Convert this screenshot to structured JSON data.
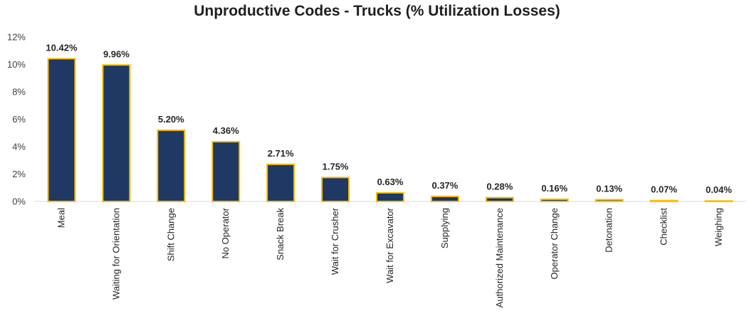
{
  "chart_data": {
    "type": "bar",
    "title": "Unproductive Codes - Trucks (% Utilization Losses)",
    "xlabel": "",
    "ylabel": "",
    "ylim": [
      0,
      12
    ],
    "y_ticks": [
      "0%",
      "2%",
      "4%",
      "6%",
      "8%",
      "10%",
      "12%"
    ],
    "y_tick_values": [
      0,
      2,
      4,
      6,
      8,
      10,
      12
    ],
    "grid": false,
    "legend": "none",
    "categories": [
      "Meal",
      "Waiting for Orientation",
      "Shift Change",
      "No Operator",
      "Snack Break",
      "Wait for Crusher",
      "Wait for Excavator",
      "Supplying",
      "Authorized Maintenance",
      "Operator Change",
      "Detonation",
      "Checklist",
      "Weighing"
    ],
    "values": [
      10.42,
      9.96,
      5.2,
      4.36,
      2.71,
      1.75,
      0.63,
      0.37,
      0.28,
      0.16,
      0.13,
      0.07,
      0.04
    ],
    "data_labels": [
      "10.42%",
      "9.96%",
      "5.20%",
      "4.36%",
      "2.71%",
      "1.75%",
      "0.63%",
      "0.37%",
      "0.28%",
      "0.16%",
      "0.13%",
      "0.07%",
      "0.04%"
    ],
    "colors": {
      "bar_fill": "#1f3864",
      "bar_border": "#ffc000",
      "axis": "#d9d9d9"
    }
  }
}
